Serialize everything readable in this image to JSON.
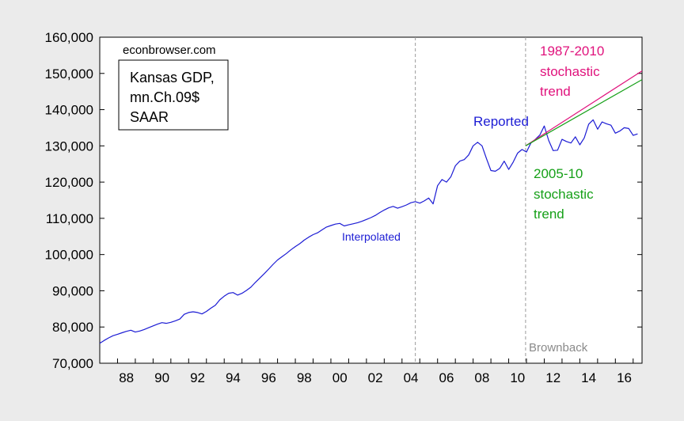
{
  "chart_data": {
    "type": "line",
    "title": "",
    "xlabel": "",
    "ylabel": "",
    "xlim": [
      1987.0,
      2017.5
    ],
    "ylim": [
      70000,
      160000
    ],
    "y_ticks": [
      70000,
      80000,
      90000,
      100000,
      110000,
      120000,
      130000,
      140000,
      150000,
      160000
    ],
    "y_tick_labels": [
      "70,000",
      "80,000",
      "90,000",
      "100,000",
      "110,000",
      "120,000",
      "130,000",
      "140,000",
      "150,000",
      "160,000"
    ],
    "x_tick_labels": [
      {
        "x": 1988,
        "label": "88"
      },
      {
        "x": 1990,
        "label": "90"
      },
      {
        "x": 1992,
        "label": "92"
      },
      {
        "x": 1994,
        "label": "94"
      },
      {
        "x": 1996,
        "label": "96"
      },
      {
        "x": 1998,
        "label": "98"
      },
      {
        "x": 2000,
        "label": "00"
      },
      {
        "x": 2002,
        "label": "02"
      },
      {
        "x": 2004,
        "label": "04"
      },
      {
        "x": 2006,
        "label": "06"
      },
      {
        "x": 2008,
        "label": "08"
      },
      {
        "x": 2010,
        "label": "10"
      },
      {
        "x": 2012,
        "label": "12"
      },
      {
        "x": 2014,
        "label": "14"
      },
      {
        "x": 2016,
        "label": "16"
      }
    ],
    "vertical_lines": [
      2004.75,
      2010.95
    ],
    "grid": false,
    "series": [
      {
        "name": "Reported",
        "color": "#1c1cd4",
        "points": [
          [
            1987.0,
            75500
          ],
          [
            1987.25,
            76300
          ],
          [
            1987.5,
            77000
          ],
          [
            1987.75,
            77600
          ],
          [
            1988.0,
            78000
          ],
          [
            1988.25,
            78400
          ],
          [
            1988.5,
            78800
          ],
          [
            1988.75,
            79100
          ],
          [
            1989.0,
            78600
          ],
          [
            1989.25,
            78900
          ],
          [
            1989.5,
            79300
          ],
          [
            1989.75,
            79800
          ],
          [
            1990.0,
            80300
          ],
          [
            1990.25,
            80800
          ],
          [
            1990.5,
            81200
          ],
          [
            1990.75,
            81000
          ],
          [
            1991.0,
            81300
          ],
          [
            1991.25,
            81700
          ],
          [
            1991.5,
            82200
          ],
          [
            1991.75,
            83500
          ],
          [
            1992.0,
            84000
          ],
          [
            1992.25,
            84200
          ],
          [
            1992.5,
            84000
          ],
          [
            1992.75,
            83600
          ],
          [
            1993.0,
            84300
          ],
          [
            1993.25,
            85200
          ],
          [
            1993.5,
            86000
          ],
          [
            1993.75,
            87500
          ],
          [
            1994.0,
            88500
          ],
          [
            1994.25,
            89300
          ],
          [
            1994.5,
            89500
          ],
          [
            1994.75,
            88800
          ],
          [
            1995.0,
            89300
          ],
          [
            1995.25,
            90100
          ],
          [
            1995.5,
            91000
          ],
          [
            1995.75,
            92300
          ],
          [
            1996.0,
            93500
          ],
          [
            1996.25,
            94700
          ],
          [
            1996.5,
            96000
          ],
          [
            1996.75,
            97300
          ],
          [
            1997.0,
            98500
          ],
          [
            1997.25,
            99400
          ],
          [
            1997.5,
            100300
          ],
          [
            1997.75,
            101300
          ],
          [
            1998.0,
            102200
          ],
          [
            1998.25,
            103000
          ],
          [
            1998.5,
            104000
          ],
          [
            1998.75,
            104800
          ],
          [
            1999.0,
            105500
          ],
          [
            1999.25,
            106000
          ],
          [
            1999.5,
            106800
          ],
          [
            1999.75,
            107600
          ],
          [
            2000.0,
            108000
          ],
          [
            2000.25,
            108400
          ],
          [
            2000.5,
            108600
          ],
          [
            2000.75,
            107900
          ],
          [
            2001.0,
            108200
          ],
          [
            2001.25,
            108500
          ],
          [
            2001.5,
            108800
          ],
          [
            2001.75,
            109200
          ],
          [
            2002.0,
            109700
          ],
          [
            2002.25,
            110200
          ],
          [
            2002.5,
            110800
          ],
          [
            2002.75,
            111600
          ],
          [
            2003.0,
            112300
          ],
          [
            2003.25,
            112900
          ],
          [
            2003.5,
            113300
          ],
          [
            2003.75,
            112800
          ],
          [
            2004.0,
            113200
          ],
          [
            2004.25,
            113700
          ],
          [
            2004.5,
            114300
          ],
          [
            2004.75,
            114600
          ],
          [
            2005.0,
            114200
          ],
          [
            2005.25,
            114800
          ],
          [
            2005.5,
            115600
          ],
          [
            2005.75,
            114000
          ],
          [
            2006.0,
            119000
          ],
          [
            2006.25,
            120700
          ],
          [
            2006.5,
            120000
          ],
          [
            2006.75,
            121500
          ],
          [
            2007.0,
            124500
          ],
          [
            2007.25,
            125800
          ],
          [
            2007.5,
            126200
          ],
          [
            2007.75,
            127500
          ],
          [
            2008.0,
            130000
          ],
          [
            2008.25,
            131000
          ],
          [
            2008.5,
            130000
          ],
          [
            2008.75,
            126500
          ],
          [
            2009.0,
            123200
          ],
          [
            2009.25,
            123000
          ],
          [
            2009.5,
            123800
          ],
          [
            2009.75,
            125800
          ],
          [
            2010.0,
            123500
          ],
          [
            2010.25,
            125500
          ],
          [
            2010.5,
            128000
          ],
          [
            2010.75,
            129000
          ],
          [
            2011.0,
            128300
          ],
          [
            2011.25,
            130800
          ],
          [
            2011.5,
            131800
          ],
          [
            2011.75,
            133000
          ],
          [
            2012.0,
            135500
          ],
          [
            2012.25,
            131500
          ],
          [
            2012.5,
            128700
          ],
          [
            2012.75,
            128800
          ],
          [
            2013.0,
            131800
          ],
          [
            2013.25,
            131200
          ],
          [
            2013.5,
            130800
          ],
          [
            2013.75,
            132500
          ],
          [
            2014.0,
            130300
          ],
          [
            2014.25,
            132200
          ],
          [
            2014.5,
            136000
          ],
          [
            2014.75,
            137200
          ],
          [
            2015.0,
            134600
          ],
          [
            2015.25,
            136600
          ],
          [
            2015.5,
            136100
          ],
          [
            2015.75,
            135700
          ],
          [
            2016.0,
            133500
          ],
          [
            2016.25,
            134100
          ],
          [
            2016.5,
            135000
          ],
          [
            2016.75,
            134800
          ],
          [
            2017.0,
            132900
          ],
          [
            2017.25,
            133300
          ]
        ]
      },
      {
        "name": "1987-2010 stochastic trend",
        "color": "#e0127c",
        "points": [
          [
            2010.95,
            130000
          ],
          [
            2017.5,
            150700
          ]
        ]
      },
      {
        "name": "2005-10 stochastic trend",
        "color": "#16a018",
        "points": [
          [
            2010.95,
            130000
          ],
          [
            2017.5,
            148300
          ]
        ]
      }
    ]
  },
  "annotations": {
    "source": "econbrowser.com",
    "box_lines": [
      "Kansas GDP,",
      "mn.Ch.09$",
      "SAAR"
    ],
    "interpolated": "Interpolated",
    "reported": "Reported",
    "trend_1987": [
      "1987-2010",
      "stochastic",
      "trend"
    ],
    "trend_2005": [
      "2005-10",
      "stochastic",
      "trend"
    ],
    "brownback": "Brownback"
  },
  "colors": {
    "background": "#ebebeb",
    "blue": "#1c1cd4",
    "magenta": "#e0127c",
    "green": "#16a018",
    "gray": "#8a8a8a"
  }
}
